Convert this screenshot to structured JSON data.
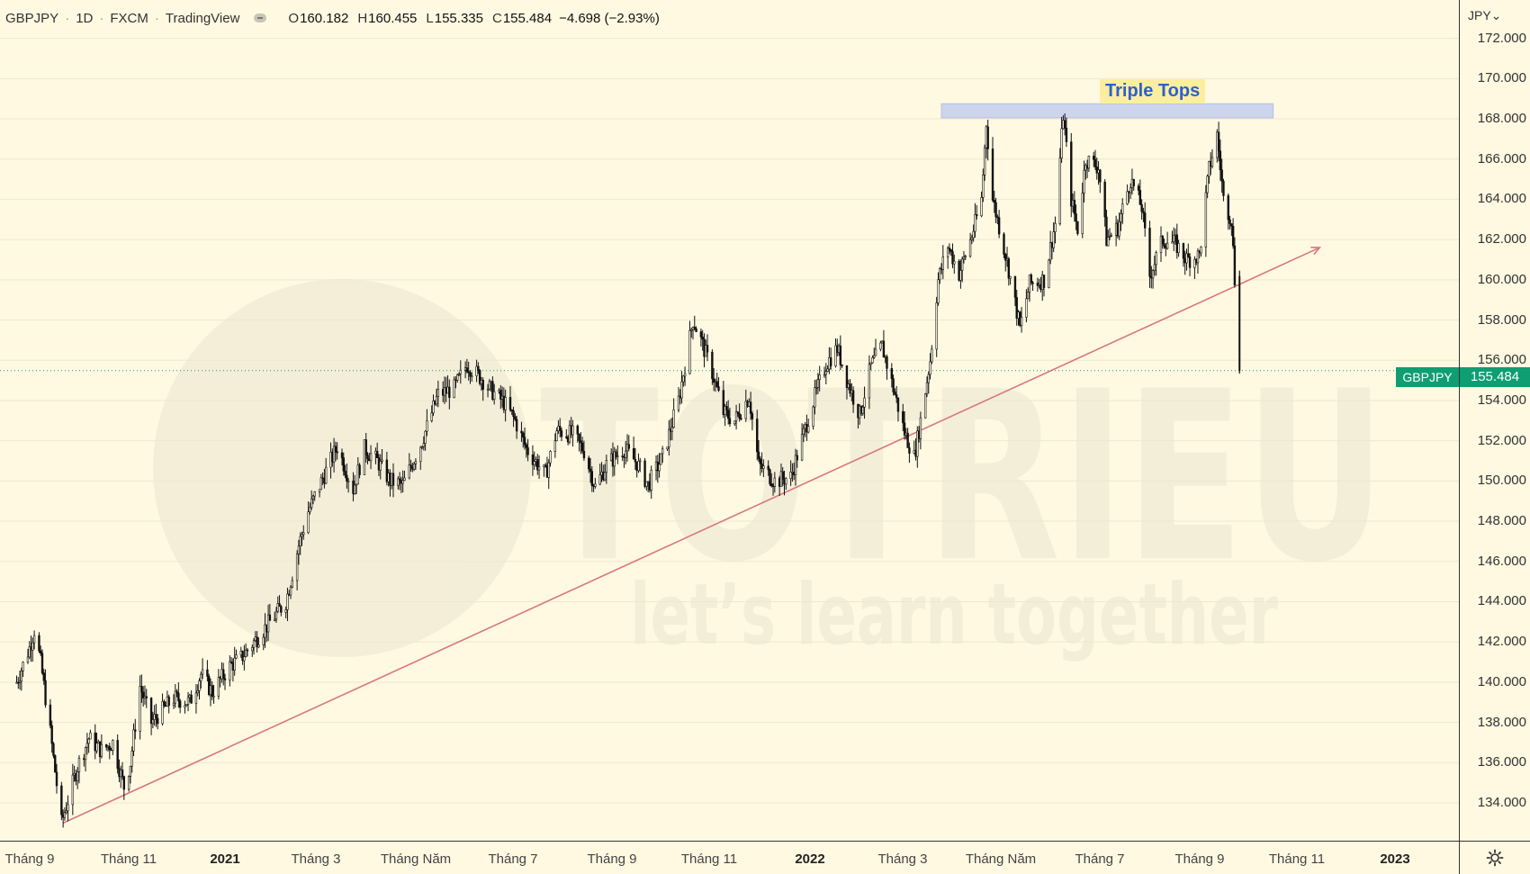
{
  "header": {
    "symbol": "GBPJPY",
    "interval": "1D",
    "exchange": "FXCM",
    "source": "TradingView",
    "ohlc": {
      "o_label": "O",
      "o": "160.182",
      "h_label": "H",
      "h": "160.455",
      "l_label": "L",
      "l": "155.335",
      "c_label": "C",
      "c": "155.484"
    },
    "change": "−4.698 (−2.93%)"
  },
  "price_axis": {
    "currency": "JPY⌄",
    "labels": [
      "172.000",
      "170.000",
      "168.000",
      "166.000",
      "164.000",
      "162.000",
      "160.000",
      "158.000",
      "156.000",
      "154.000",
      "152.000",
      "150.000",
      "148.000",
      "146.000",
      "144.000",
      "142.000",
      "140.000",
      "138.000",
      "136.000",
      "134.000"
    ]
  },
  "time_axis": {
    "labels": [
      {
        "text": "Tháng 9",
        "year": false
      },
      {
        "text": "Tháng 11",
        "year": false
      },
      {
        "text": "2021",
        "year": true
      },
      {
        "text": "Tháng 3",
        "year": false
      },
      {
        "text": "Tháng Năm",
        "year": false
      },
      {
        "text": "Tháng 7",
        "year": false
      },
      {
        "text": "Tháng 9",
        "year": false
      },
      {
        "text": "Tháng 11",
        "year": false
      },
      {
        "text": "2022",
        "year": true
      },
      {
        "text": "Tháng 3",
        "year": false
      },
      {
        "text": "Tháng Năm",
        "year": false
      },
      {
        "text": "Tháng 7",
        "year": false
      },
      {
        "text": "Tháng 9",
        "year": false
      },
      {
        "text": "Tháng 11",
        "year": false
      },
      {
        "text": "2023",
        "year": true
      }
    ]
  },
  "last_price": {
    "symbol_tag": "GBPJPY",
    "value": "155.484",
    "color": "#0f9d72"
  },
  "annotation": {
    "label": "Triple Tops",
    "zone_low": 168.05,
    "zone_high": 168.75
  },
  "watermark": {
    "brand": "TOTRIEU",
    "tagline": "let’s learn together"
  },
  "colors": {
    "background": "#fff9e2",
    "candles": "#111111",
    "trendline": "#d9777b",
    "zone": "#c5cff0",
    "last_price": "#0f9d72"
  },
  "chart_data": {
    "type": "candlestick",
    "symbol": "GBPJPY",
    "interval": "1D",
    "y_range": [
      132.5,
      173.8
    ],
    "y_ticks": [
      134,
      136,
      138,
      140,
      142,
      144,
      146,
      148,
      150,
      152,
      154,
      156,
      158,
      160,
      162,
      164,
      166,
      168,
      170,
      172
    ],
    "x_labels": [
      "Tháng 9",
      "Tháng 11",
      "2021",
      "Tháng 3",
      "Tháng Năm",
      "Tháng 7",
      "Tháng 9",
      "Tháng 11",
      "2022",
      "Tháng 3",
      "Tháng Năm",
      "Tháng 7",
      "Tháng 9",
      "Tháng 11",
      "2023"
    ],
    "price_path": [
      [
        "2020-08-24",
        140.0
      ],
      [
        "2020-09-01",
        141.7
      ],
      [
        "2020-09-04",
        142.6
      ],
      [
        "2020-09-08",
        141.0
      ],
      [
        "2020-09-14",
        137.5
      ],
      [
        "2020-09-21",
        133.0
      ],
      [
        "2020-10-01",
        135.8
      ],
      [
        "2020-10-08",
        137.2
      ],
      [
        "2020-10-16",
        136.6
      ],
      [
        "2020-10-23",
        137.0
      ],
      [
        "2020-10-30",
        134.8
      ],
      [
        "2020-11-03",
        136.0
      ],
      [
        "2020-11-09",
        139.8
      ],
      [
        "2020-11-16",
        138.0
      ],
      [
        "2020-11-30",
        139.2
      ],
      [
        "2020-12-10",
        139.0
      ],
      [
        "2020-12-17",
        140.4
      ],
      [
        "2020-12-24",
        139.5
      ],
      [
        "2021-01-04",
        140.8
      ],
      [
        "2021-01-11",
        141.2
      ],
      [
        "2021-01-29",
        143.0
      ],
      [
        "2021-02-08",
        144.0
      ],
      [
        "2021-02-16",
        146.8
      ],
      [
        "2021-02-22",
        148.5
      ],
      [
        "2021-03-05",
        150.5
      ],
      [
        "2021-03-12",
        151.7
      ],
      [
        "2021-03-22",
        149.6
      ],
      [
        "2021-03-29",
        151.6
      ],
      [
        "2021-04-06",
        151.0
      ],
      [
        "2021-04-14",
        150.0
      ],
      [
        "2021-04-22",
        149.8
      ],
      [
        "2021-05-04",
        152.0
      ],
      [
        "2021-05-14",
        154.3
      ],
      [
        "2021-05-24",
        154.6
      ],
      [
        "2021-06-01",
        155.8
      ],
      [
        "2021-06-10",
        155.1
      ],
      [
        "2021-06-15",
        154.6
      ],
      [
        "2021-06-24",
        153.9
      ],
      [
        "2021-07-01",
        153.0
      ],
      [
        "2021-07-08",
        151.6
      ],
      [
        "2021-07-20",
        150.3
      ],
      [
        "2021-07-27",
        152.5
      ],
      [
        "2021-08-06",
        152.3
      ],
      [
        "2021-08-13",
        151.5
      ],
      [
        "2021-08-20",
        149.7
      ],
      [
        "2021-08-27",
        150.8
      ],
      [
        "2021-09-07",
        151.6
      ],
      [
        "2021-09-15",
        150.9
      ],
      [
        "2021-09-22",
        149.8
      ],
      [
        "2021-10-01",
        151.2
      ],
      [
        "2021-10-11",
        154.0
      ],
      [
        "2021-10-20",
        158.0
      ],
      [
        "2021-10-25",
        157.0
      ],
      [
        "2021-11-01",
        155.4
      ],
      [
        "2021-11-08",
        153.4
      ],
      [
        "2021-11-15",
        153.0
      ],
      [
        "2021-11-24",
        154.2
      ],
      [
        "2021-11-30",
        150.8
      ],
      [
        "2021-12-10",
        150.0
      ],
      [
        "2021-12-20",
        150.2
      ],
      [
        "2022-01-04",
        154.2
      ],
      [
        "2022-01-11",
        155.8
      ],
      [
        "2022-01-18",
        156.6
      ],
      [
        "2022-01-25",
        154.8
      ],
      [
        "2022-02-01",
        153.3
      ],
      [
        "2022-02-08",
        155.7
      ],
      [
        "2022-02-15",
        156.7
      ],
      [
        "2022-02-23",
        154.3
      ],
      [
        "2022-03-01",
        152.4
      ],
      [
        "2022-03-07",
        151.2
      ],
      [
        "2022-03-11",
        153.0
      ],
      [
        "2022-03-17",
        156.0
      ],
      [
        "2022-03-22",
        160.0
      ],
      [
        "2022-03-28",
        161.7
      ],
      [
        "2022-04-04",
        160.3
      ],
      [
        "2022-04-12",
        162.2
      ],
      [
        "2022-04-18",
        164.0
      ],
      [
        "2022-04-21",
        167.8
      ],
      [
        "2022-04-25",
        164.0
      ],
      [
        "2022-04-28",
        163.0
      ],
      [
        "2022-05-05",
        160.5
      ],
      [
        "2022-05-12",
        157.6
      ],
      [
        "2022-05-18",
        159.8
      ],
      [
        "2022-05-27",
        160.0
      ],
      [
        "2022-06-03",
        162.8
      ],
      [
        "2022-06-08",
        168.2
      ],
      [
        "2022-06-13",
        164.0
      ],
      [
        "2022-06-17",
        162.5
      ],
      [
        "2022-06-22",
        166.0
      ],
      [
        "2022-06-30",
        165.6
      ],
      [
        "2022-07-05",
        162.0
      ],
      [
        "2022-07-12",
        162.6
      ],
      [
        "2022-07-20",
        165.0
      ],
      [
        "2022-07-27",
        163.6
      ],
      [
        "2022-08-01",
        160.2
      ],
      [
        "2022-08-09",
        162.0
      ],
      [
        "2022-08-17",
        161.8
      ],
      [
        "2022-08-24",
        161.0
      ],
      [
        "2022-09-01",
        161.2
      ],
      [
        "2022-09-07",
        165.5
      ],
      [
        "2022-09-12",
        167.2
      ],
      [
        "2022-09-16",
        164.0
      ],
      [
        "2022-09-21",
        163.0
      ],
      [
        "2022-09-26",
        155.5
      ]
    ],
    "trendline": {
      "points": [
        [
          "2020-09-22",
          133.0
        ],
        [
          "2022-11-15",
          161.6
        ]
      ],
      "color": "#d9777b",
      "arrow": true
    },
    "zone": {
      "from": "2022-03-24",
      "to": "2022-10-17",
      "low": 168.05,
      "high": 168.75,
      "label": "Triple Tops"
    },
    "last_close": 155.484
  }
}
